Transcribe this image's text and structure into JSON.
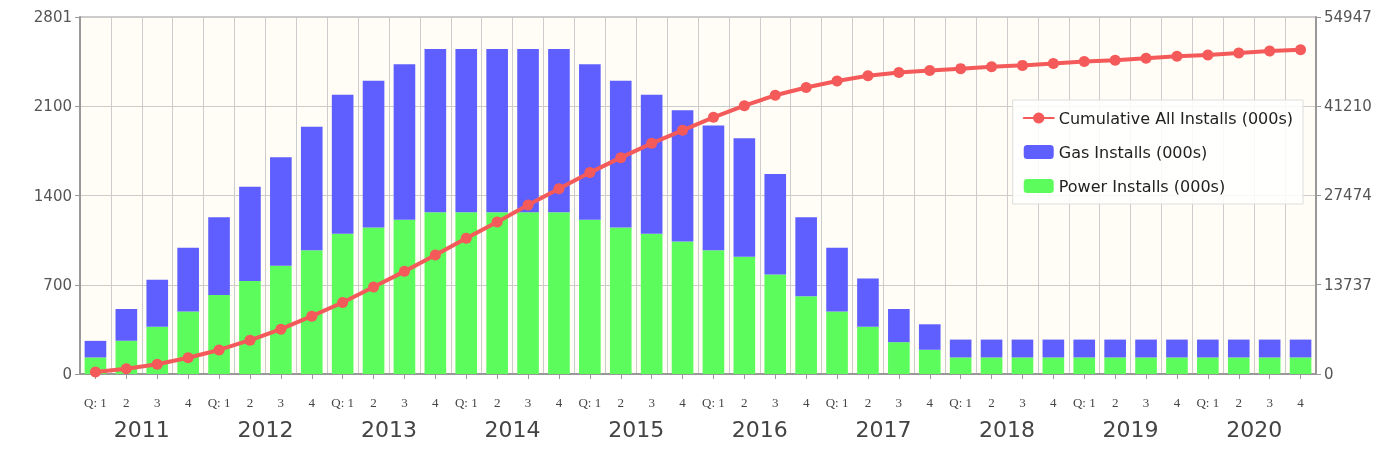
{
  "chart_data": {
    "type": "bar",
    "stacked": true,
    "categories": [
      "Q: 1",
      "2",
      "3",
      "4",
      "Q: 1",
      "2",
      "3",
      "4",
      "Q: 1",
      "2",
      "3",
      "4",
      "Q: 1",
      "2",
      "3",
      "4",
      "Q: 1",
      "2",
      "3",
      "4",
      "Q: 1",
      "2",
      "3",
      "4",
      "Q: 1",
      "2",
      "3",
      "4",
      "Q: 1",
      "2",
      "3",
      "4",
      "Q: 1",
      "2",
      "3",
      "4",
      "Q: 1",
      "2",
      "3",
      "4"
    ],
    "annotations": [
      "2011",
      "2012",
      "2013",
      "2014",
      "2015",
      "2016",
      "2017",
      "2018",
      "2019",
      "2020"
    ],
    "series": [
      {
        "name": "Power Installs (000s)",
        "color": "#5cfc5c",
        "values": [
          130,
          260,
          370,
          490,
          620,
          730,
          850,
          970,
          1100,
          1150,
          1210,
          1270,
          1270,
          1270,
          1270,
          1270,
          1210,
          1150,
          1100,
          1040,
          970,
          920,
          780,
          610,
          490,
          370,
          250,
          190,
          130,
          130,
          130,
          130,
          130,
          130,
          130,
          130,
          130,
          130,
          130,
          130
        ]
      },
      {
        "name": "Gas Installs (000s)",
        "color": "#5f5fff",
        "values": [
          130,
          250,
          370,
          500,
          610,
          740,
          850,
          970,
          1090,
          1150,
          1220,
          1280,
          1280,
          1280,
          1280,
          1280,
          1220,
          1150,
          1090,
          1030,
          980,
          930,
          790,
          620,
          500,
          380,
          260,
          200,
          140,
          140,
          140,
          140,
          140,
          140,
          140,
          140,
          140,
          140,
          140,
          140
        ]
      },
      {
        "name": "Cumulative All Installs (000s)",
        "type": "line",
        "axis": "y2",
        "color": "#f55a5a",
        "values": [
          300,
          800,
          1500,
          2500,
          3700,
          5200,
          6900,
          8900,
          11000,
          13400,
          15800,
          18300,
          20900,
          23400,
          26000,
          28500,
          31000,
          33300,
          35500,
          37500,
          39500,
          41300,
          42900,
          44100,
          45100,
          45900,
          46400,
          46700,
          47000,
          47300,
          47500,
          47800,
          48100,
          48300,
          48600,
          48900,
          49100,
          49400,
          49700,
          49900
        ]
      }
    ],
    "ylim": [
      0,
      2801
    ],
    "yticks": [
      0,
      700,
      1400,
      2100,
      2801
    ],
    "y2lim": [
      0,
      54947
    ],
    "y2ticks": [
      0,
      13737,
      27474,
      41210,
      54947
    ],
    "grid": true,
    "legend": "right",
    "marker": "circle",
    "line_style": "solid"
  }
}
